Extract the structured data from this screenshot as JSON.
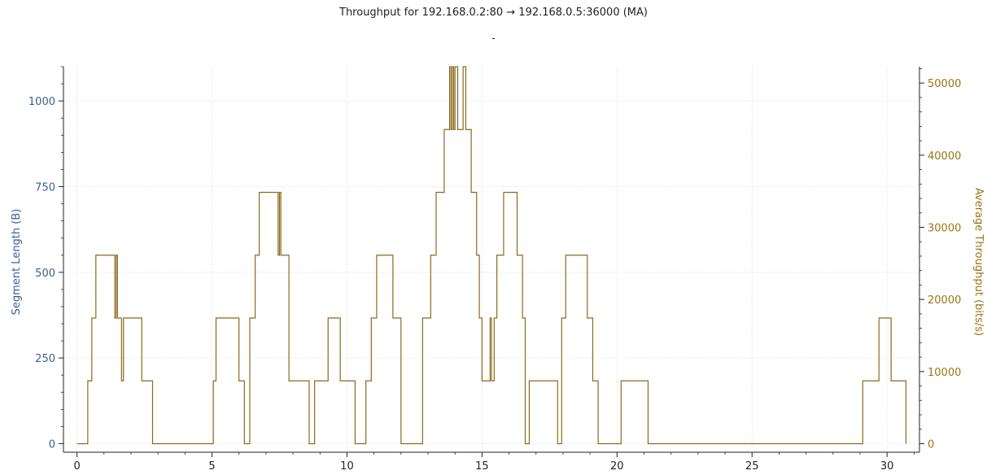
{
  "colors": {
    "left_axis": "#3a5f93",
    "right_axis": "#9b7416",
    "series_line": "#8b6a1d",
    "grid": "#d6d6d6",
    "axis": "#222222"
  },
  "chart_data": {
    "type": "line",
    "title": "Throughput for 192.168.0.2:80 → 192.168.0.5:36000 (MA)",
    "subtitle": "-",
    "xlabel": "",
    "ylabel": "Segment Length (B)",
    "ylabel_right": "Average Throughput (bits/s)",
    "xlim": [
      -0.5,
      31.2
    ],
    "ylim": [
      -25,
      1100
    ],
    "y2lim": [
      -1188,
      52272
    ],
    "x_ticks": [
      0,
      5,
      10,
      15,
      20,
      25,
      30
    ],
    "y_ticks": [
      0,
      250,
      500,
      750,
      1000
    ],
    "y2_ticks": [
      0,
      10000,
      20000,
      30000,
      40000,
      50000
    ],
    "grid": true,
    "series": [
      {
        "axis": "right",
        "step": true,
        "x": [
          0.0,
          0.4,
          0.55,
          0.7,
          0.8,
          1.4,
          1.45,
          1.5,
          1.6,
          1.65,
          1.72,
          1.75,
          1.78,
          2.0,
          2.4,
          2.8,
          5.05,
          5.15,
          6.0,
          6.2,
          6.4,
          6.6,
          6.75,
          6.85,
          7.45,
          7.5,
          7.55,
          7.6,
          7.65,
          7.7,
          7.85,
          8.0,
          8.6,
          8.8,
          9.3,
          9.75,
          10.0,
          10.3,
          10.7,
          10.9,
          11.1,
          11.7,
          12.0,
          12.8,
          13.1,
          13.3,
          13.6,
          13.8,
          13.85,
          13.9,
          13.95,
          14.0,
          14.05,
          14.1,
          14.2,
          14.3,
          14.4,
          14.6,
          14.8,
          14.9,
          15.0,
          15.1,
          15.3,
          15.35,
          15.45,
          15.55,
          15.8,
          16.0,
          16.3,
          16.5,
          16.6,
          16.75,
          16.9,
          17.8,
          17.95,
          18.1,
          18.3,
          18.9,
          19.1,
          19.3,
          20.15,
          21.15,
          29.1,
          29.7,
          30.15,
          30.7
        ],
        "values": [
          0,
          8712,
          17424,
          26136,
          26136,
          17424,
          26136,
          17424,
          17424,
          8712,
          17424,
          17424,
          17424,
          17424,
          8712,
          0,
          8712,
          17424,
          8712,
          0,
          17424,
          26136,
          34848,
          34848,
          26136,
          34848,
          26136,
          26136,
          26136,
          26136,
          8712,
          8712,
          0,
          8712,
          17424,
          8712,
          8712,
          0,
          8712,
          17424,
          26136,
          17424,
          0,
          17424,
          26136,
          34848,
          43560,
          52272,
          43560,
          52272,
          43560,
          52272,
          52272,
          43560,
          43560,
          52272,
          43560,
          34848,
          26136,
          17424,
          8712,
          8712,
          17424,
          8712,
          17424,
          26136,
          34848,
          34848,
          26136,
          17424,
          0,
          8712,
          8712,
          0,
          17424,
          26136,
          26136,
          17424,
          8712,
          0,
          8712,
          0,
          8712,
          17424,
          8712,
          0
        ]
      }
    ]
  }
}
